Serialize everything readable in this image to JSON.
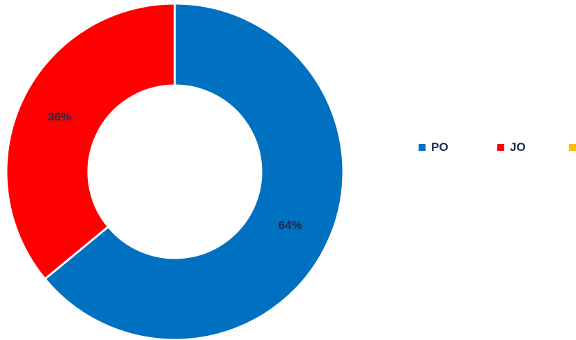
{
  "chart_data": {
    "type": "pie",
    "donut": true,
    "categories": [
      "PO",
      "JO",
      ""
    ],
    "values": [
      64,
      36,
      0
    ],
    "labels": [
      "64%",
      "36%",
      ""
    ],
    "colors": [
      "#0070C0",
      "#FF0000",
      "#FFC000"
    ],
    "legend": {
      "position": "right",
      "entries": [
        "PO",
        "JO",
        ""
      ]
    }
  }
}
